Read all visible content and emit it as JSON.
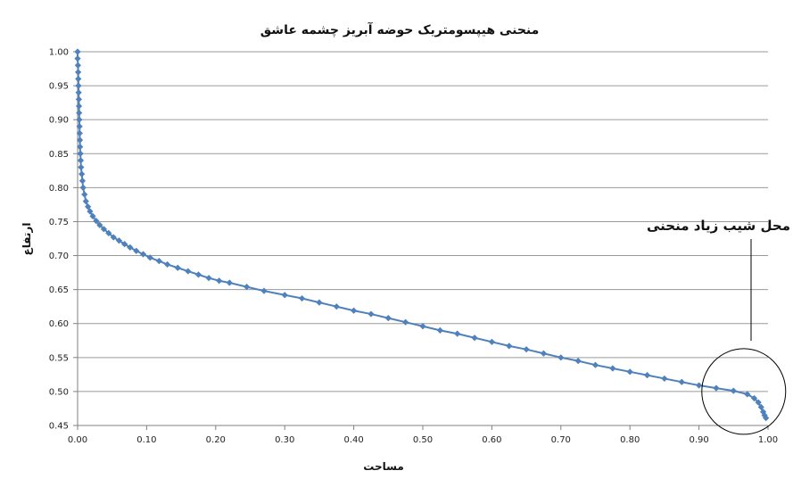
{
  "chart_data": {
    "type": "line",
    "title": "منحنی هیپسومتریک حوضه آبریز چشمه عاشق",
    "xlabel": "مساحت",
    "ylabel": "ارتفاع",
    "xlim": [
      0,
      1
    ],
    "ylim": [
      0.45,
      1.0
    ],
    "x_ticks": [
      "0.00",
      "0.10",
      "0.20",
      "0.30",
      "0.40",
      "0.50",
      "0.60",
      "0.70",
      "0.80",
      "0.90",
      "1.00"
    ],
    "y_ticks": [
      "0.45",
      "0.50",
      "0.55",
      "0.60",
      "0.65",
      "0.70",
      "0.75",
      "0.80",
      "0.85",
      "0.90",
      "0.95",
      "1.00"
    ],
    "grid": "horizontal",
    "legend": "none",
    "colors": {
      "series": "#4F81BD",
      "grid": "#9a9a9a",
      "axis": "#808080",
      "annotation": "#000000"
    },
    "series": [
      {
        "marker": "diamond",
        "points": [
          [
            0.0,
            1.0
          ],
          [
            0.0,
            0.99
          ],
          [
            0.0005,
            0.98
          ],
          [
            0.0008,
            0.97
          ],
          [
            0.001,
            0.96
          ],
          [
            0.0012,
            0.95
          ],
          [
            0.0015,
            0.94
          ],
          [
            0.0018,
            0.93
          ],
          [
            0.002,
            0.92
          ],
          [
            0.0022,
            0.91
          ],
          [
            0.0025,
            0.9
          ],
          [
            0.0028,
            0.89
          ],
          [
            0.003,
            0.88
          ],
          [
            0.0033,
            0.87
          ],
          [
            0.0035,
            0.86
          ],
          [
            0.004,
            0.85
          ],
          [
            0.0045,
            0.84
          ],
          [
            0.005,
            0.83
          ],
          [
            0.006,
            0.82
          ],
          [
            0.007,
            0.81
          ],
          [
            0.008,
            0.8
          ],
          [
            0.01,
            0.79
          ],
          [
            0.012,
            0.78
          ],
          [
            0.015,
            0.772
          ],
          [
            0.018,
            0.765
          ],
          [
            0.022,
            0.758
          ],
          [
            0.027,
            0.751
          ],
          [
            0.032,
            0.745
          ],
          [
            0.038,
            0.739
          ],
          [
            0.045,
            0.733
          ],
          [
            0.052,
            0.727
          ],
          [
            0.06,
            0.722
          ],
          [
            0.068,
            0.717
          ],
          [
            0.076,
            0.712
          ],
          [
            0.085,
            0.707
          ],
          [
            0.095,
            0.702
          ],
          [
            0.105,
            0.697
          ],
          [
            0.118,
            0.692
          ],
          [
            0.13,
            0.687
          ],
          [
            0.145,
            0.682
          ],
          [
            0.16,
            0.677
          ],
          [
            0.175,
            0.672
          ],
          [
            0.19,
            0.667
          ],
          [
            0.205,
            0.663
          ],
          [
            0.22,
            0.66
          ],
          [
            0.245,
            0.654
          ],
          [
            0.27,
            0.648
          ],
          [
            0.3,
            0.642
          ],
          [
            0.325,
            0.637
          ],
          [
            0.35,
            0.631
          ],
          [
            0.375,
            0.625
          ],
          [
            0.4,
            0.619
          ],
          [
            0.425,
            0.614
          ],
          [
            0.45,
            0.608
          ],
          [
            0.475,
            0.602
          ],
          [
            0.5,
            0.596
          ],
          [
            0.525,
            0.59
          ],
          [
            0.55,
            0.585
          ],
          [
            0.575,
            0.579
          ],
          [
            0.6,
            0.573
          ],
          [
            0.625,
            0.567
          ],
          [
            0.65,
            0.562
          ],
          [
            0.675,
            0.556
          ],
          [
            0.7,
            0.55
          ],
          [
            0.725,
            0.545
          ],
          [
            0.75,
            0.539
          ],
          [
            0.775,
            0.534
          ],
          [
            0.8,
            0.529
          ],
          [
            0.825,
            0.524
          ],
          [
            0.85,
            0.519
          ],
          [
            0.875,
            0.514
          ],
          [
            0.9,
            0.509
          ],
          [
            0.925,
            0.505
          ],
          [
            0.95,
            0.501
          ],
          [
            0.97,
            0.496
          ],
          [
            0.98,
            0.49
          ],
          [
            0.986,
            0.484
          ],
          [
            0.99,
            0.477
          ],
          [
            0.993,
            0.47
          ],
          [
            0.995,
            0.465
          ],
          [
            0.997,
            0.461
          ]
        ]
      }
    ],
    "annotation": {
      "text": "محل شیب زیاد منحنی",
      "target": [
        0.97,
        0.5
      ]
    }
  }
}
